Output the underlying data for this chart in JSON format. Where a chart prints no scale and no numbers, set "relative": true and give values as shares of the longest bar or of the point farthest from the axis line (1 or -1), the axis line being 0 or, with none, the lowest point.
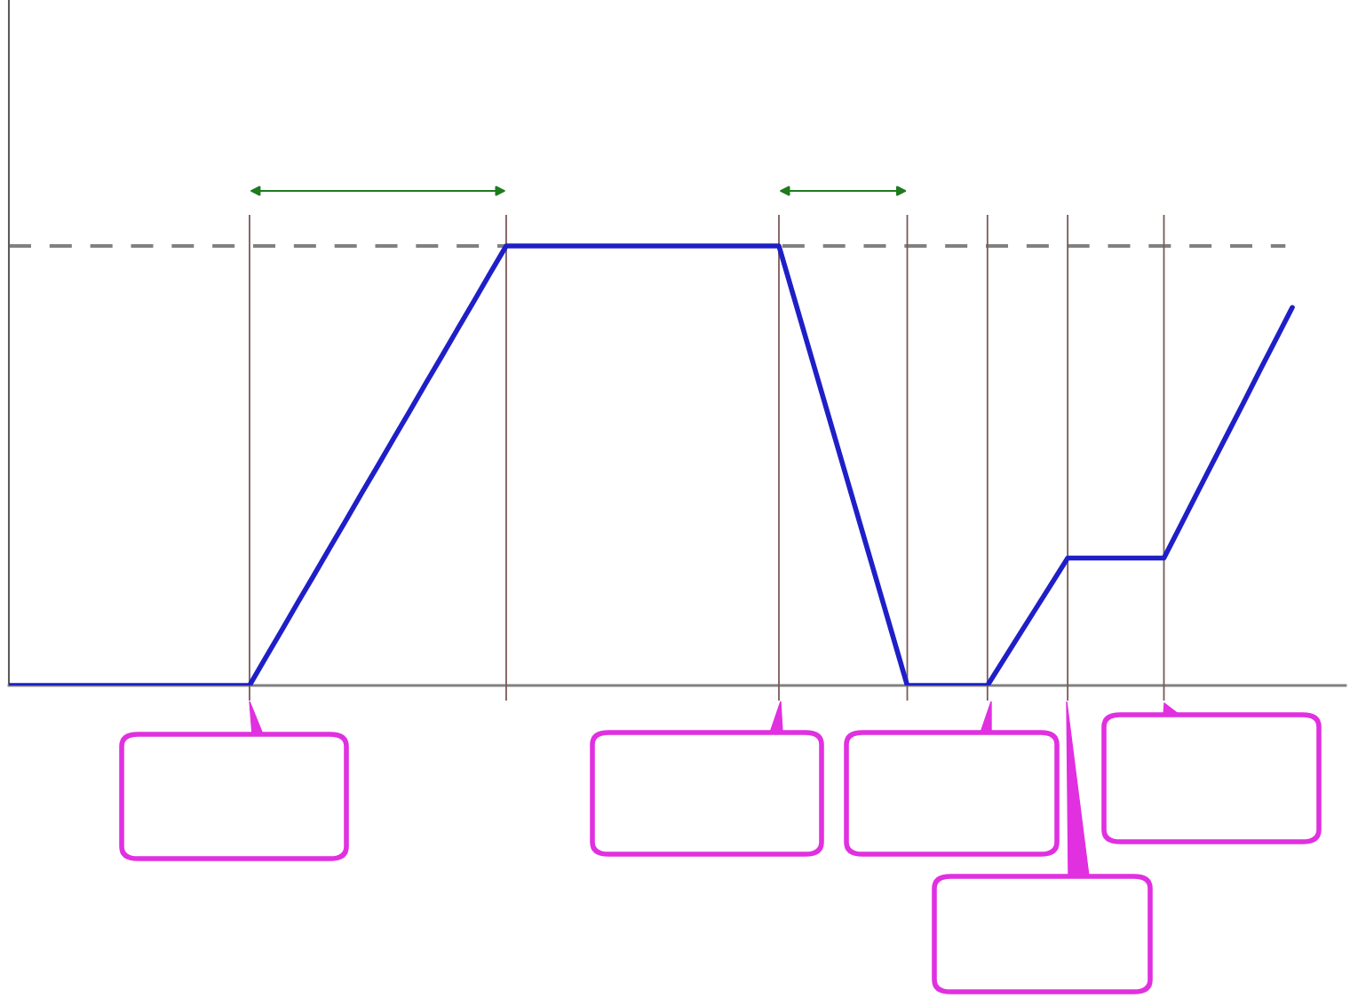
{
  "chart_data": {
    "type": "line",
    "relative": true,
    "grid": "x",
    "categories": [
      null,
      null,
      null,
      null,
      null,
      null,
      null,
      null,
      null,
      null,
      null,
      null,
      null,
      null,
      null,
      null,
      null,
      null,
      null,
      null,
      null,
      null,
      null,
      null,
      null,
      null,
      null,
      null,
      null,
      null,
      null,
      null,
      null,
      null,
      null,
      null,
      null,
      null,
      null,
      null,
      null,
      null,
      null,
      null,
      null,
      null,
      null,
      null,
      null,
      null,
      null,
      null,
      null,
      null,
      null,
      null,
      null,
      null,
      null,
      null,
      null,
      null,
      null,
      null,
      null,
      null,
      null,
      null,
      null,
      null,
      null,
      null,
      null,
      null,
      null,
      null,
      null,
      null,
      null,
      null,
      null
    ],
    "series": [
      {
        "color": "#1f1fc8",
        "values": [
          0,
          0,
          0,
          0,
          0,
          0,
          0,
          0,
          0,
          0,
          0,
          0,
          0,
          0,
          0,
          0,
          0.063,
          0.125,
          0.188,
          0.25,
          0.313,
          0.375,
          0.438,
          0.5,
          0.563,
          0.625,
          0.688,
          0.75,
          0.813,
          0.875,
          0.938,
          1,
          1,
          1,
          1,
          1,
          1,
          1,
          1,
          1,
          1,
          1,
          1,
          1,
          1,
          1,
          1,
          1,
          1,
          0.875,
          0.75,
          0.625,
          0.5,
          0.375,
          0.25,
          0.125,
          0,
          0,
          0,
          0,
          0,
          0,
          0.058,
          0.116,
          0.174,
          0.232,
          0.29,
          0.29,
          0.29,
          0.29,
          0.29,
          0.29,
          0.29,
          0.361,
          0.433,
          0.504,
          0.575,
          0.646,
          0.718,
          0.789,
          0.86
        ]
      }
    ],
    "ref_lines": [
      {
        "axis": "y",
        "value": 1,
        "color": "#808080",
        "line_style": "dashed"
      }
    ]
  }
}
